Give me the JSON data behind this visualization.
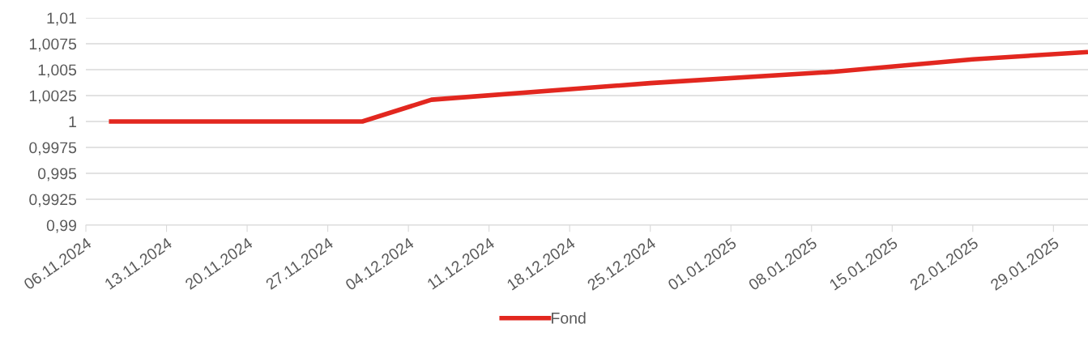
{
  "chart_data": {
    "type": "line",
    "x": [
      "2024-11-08",
      "2024-11-30",
      "2024-12-06",
      "2024-12-25",
      "2025-01-10",
      "2025-01-22",
      "2025-02-01"
    ],
    "series": [
      {
        "name": "Fond",
        "color": "#e2271f",
        "values": [
          1.0,
          1.0,
          1.0021,
          1.0037,
          1.0048,
          1.006,
          1.0067
        ]
      }
    ],
    "xlim": [
      "2024-11-06",
      "2025-02-01"
    ],
    "xticks": [
      {
        "value": "2024-11-06",
        "label": "06.11.2024"
      },
      {
        "value": "2024-11-13",
        "label": "13.11.2024"
      },
      {
        "value": "2024-11-20",
        "label": "20.11.2024"
      },
      {
        "value": "2024-11-27",
        "label": "27.11.2024"
      },
      {
        "value": "2024-12-04",
        "label": "04.12.2024"
      },
      {
        "value": "2024-12-11",
        "label": "11.12.2024"
      },
      {
        "value": "2024-12-18",
        "label": "18.12.2024"
      },
      {
        "value": "2024-12-25",
        "label": "25.12.2024"
      },
      {
        "value": "2025-01-01",
        "label": "01.01.2025"
      },
      {
        "value": "2025-01-08",
        "label": "08.01.2025"
      },
      {
        "value": "2025-01-15",
        "label": "15.01.2025"
      },
      {
        "value": "2025-01-22",
        "label": "22.01.2025"
      },
      {
        "value": "2025-01-29",
        "label": "29.01.2025"
      }
    ],
    "ylim": [
      0.99,
      1.01
    ],
    "yticks": [
      {
        "value": 0.99,
        "label": "0,99"
      },
      {
        "value": 0.9925,
        "label": "0,9925"
      },
      {
        "value": 0.995,
        "label": "0,995"
      },
      {
        "value": 0.9975,
        "label": "0,9975"
      },
      {
        "value": 1,
        "label": "1"
      },
      {
        "value": 1.0025,
        "label": "1,0025"
      },
      {
        "value": 1.005,
        "label": "1,005"
      },
      {
        "value": 1.0075,
        "label": "1,0075"
      },
      {
        "value": 1.01,
        "label": "1,01"
      }
    ],
    "grid": "y",
    "legend": "bottom",
    "marker": "none",
    "line_style": "solid"
  }
}
